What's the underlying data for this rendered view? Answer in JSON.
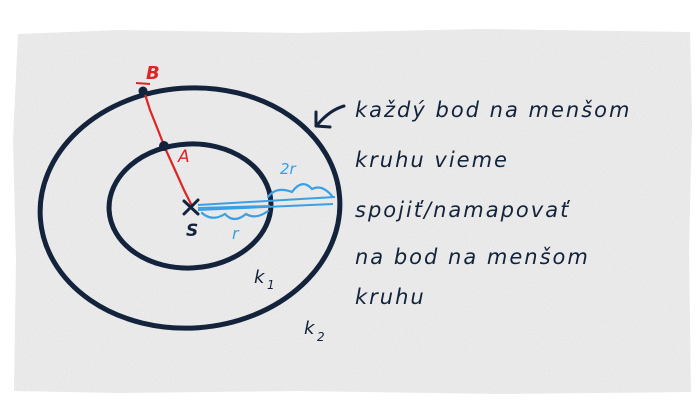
{
  "labels": {
    "point_b": "B",
    "point_a": "A",
    "center": "S",
    "radius_small": "r",
    "radius_double": "2r",
    "circle_inner": "k",
    "circle_inner_sub": "1",
    "circle_outer": "k",
    "circle_outer_sub": "2"
  },
  "note": {
    "lines": [
      "každý bod na menšom",
      "kruhu vieme",
      "spojiť/namapovať",
      "na bod na menšom",
      "kruhu"
    ]
  },
  "colors": {
    "ink": "#13233b",
    "red": "#e02424",
    "blue": "#3aa0e6",
    "paper": "#f1f1f1"
  }
}
